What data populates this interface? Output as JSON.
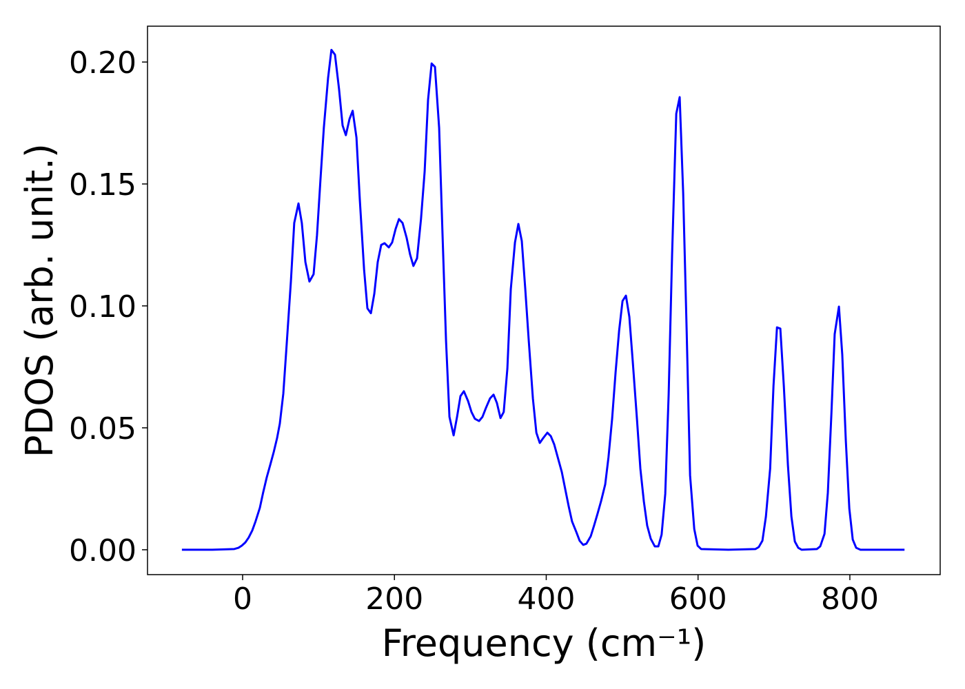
{
  "chart_data": {
    "type": "line",
    "x_label": "Frequency (cm⁻¹)",
    "y_label": "PDOS (arb. unit.)",
    "color": "#0000ff",
    "xlim": [
      -125.3,
      919
    ],
    "ylim": [
      -0.0102,
      0.2147
    ],
    "xticks": [
      0,
      200,
      400,
      600,
      800
    ],
    "yticks": [
      {
        "value": 0,
        "label": "0.00"
      },
      {
        "value": 0.05,
        "label": "0.05"
      },
      {
        "value": 0.1,
        "label": "0.10"
      },
      {
        "value": 0.15,
        "label": "0.15"
      },
      {
        "value": 0.2,
        "label": "0.20"
      }
    ],
    "grid": false,
    "x": [
      -80,
      -40,
      -11,
      -5.5,
      -1,
      3.6,
      8,
      12.7,
      17,
      22.7,
      27,
      31.8,
      36.3,
      41,
      45.4,
      49,
      53.6,
      58,
      63.6,
      68,
      73.6,
      78,
      82.7,
      88,
      93.5,
      98,
      102.6,
      107,
      112.6,
      117,
      121.7,
      127,
      131.7,
      136,
      140.8,
      145,
      150,
      154.4,
      160,
      164.4,
      169,
      173.5,
      178,
      182.6,
      187,
      192.6,
      197,
      201.6,
      206,
      210.7,
      216,
      220.7,
      225,
      229.8,
      235,
      239.8,
      244.3,
      249,
      253.4,
      258.9,
      263.4,
      268,
      272.5,
      278,
      282.5,
      287,
      291.5,
      297,
      301.5,
      306,
      311.5,
      316,
      320.6,
      326,
      330.6,
      335,
      339.7,
      344,
      348.8,
      353.3,
      358.8,
      363.3,
      367.8,
      372.4,
      377,
      382.4,
      387,
      391.5,
      396,
      401.5,
      406,
      410.5,
      415,
      420.5,
      425,
      429.6,
      434,
      439.6,
      444,
      448.7,
      453,
      458.7,
      463,
      467.8,
      472.3,
      477.7,
      482,
      486.8,
      491.4,
      496,
      500.5,
      505,
      509.5,
      514,
      519.5,
      524,
      528.6,
      533,
      537.7,
      543,
      547.7,
      552,
      556.8,
      561.3,
      565.8,
      571.3,
      575.8,
      580.4,
      585,
      589.5,
      595,
      599.4,
      604,
      640,
      675.7,
      680,
      684.8,
      689.4,
      695,
      699.4,
      704,
      708.4,
      713,
      718.4,
      723,
      727.5,
      732,
      736.6,
      756.6,
      761,
      766.6,
      771,
      775.7,
      780,
      785.6,
      790,
      794.7,
      799.3,
      803.8,
      808.3,
      814,
      872
    ],
    "values": [
      0,
      0,
      0.0003,
      0.0008,
      0.0017,
      0.003,
      0.005,
      0.0079,
      0.0116,
      0.0172,
      0.0234,
      0.0297,
      0.0347,
      0.0401,
      0.0458,
      0.0517,
      0.064,
      0.084,
      0.11,
      0.134,
      0.142,
      0.134,
      0.118,
      0.11,
      0.113,
      0.129,
      0.152,
      0.173,
      0.1935,
      0.205,
      0.203,
      0.189,
      0.174,
      0.17,
      0.1766,
      0.18,
      0.169,
      0.1435,
      0.115,
      0.099,
      0.097,
      0.105,
      0.118,
      0.125,
      0.1257,
      0.124,
      0.126,
      0.1316,
      0.1356,
      0.134,
      0.128,
      0.121,
      0.1164,
      0.1195,
      0.1356,
      0.155,
      0.1845,
      0.1994,
      0.198,
      0.173,
      0.129,
      0.0856,
      0.0545,
      0.0469,
      0.0545,
      0.063,
      0.065,
      0.061,
      0.0565,
      0.0537,
      0.0528,
      0.0545,
      0.0582,
      0.0621,
      0.0636,
      0.0602,
      0.054,
      0.0565,
      0.0743,
      0.1068,
      0.126,
      0.1336,
      0.1266,
      0.1068,
      0.0856,
      0.0621,
      0.048,
      0.0438,
      0.0458,
      0.048,
      0.0466,
      0.0432,
      0.0381,
      0.0319,
      0.0249,
      0.0178,
      0.0116,
      0.0073,
      0.0037,
      0.002,
      0.0025,
      0.0056,
      0.0099,
      0.015,
      0.02,
      0.0268,
      0.0379,
      0.0537,
      0.0729,
      0.0898,
      0.102,
      0.1042,
      0.0955,
      0.0771,
      0.0537,
      0.0333,
      0.0198,
      0.0099,
      0.0045,
      0.0014,
      0.0014,
      0.0062,
      0.0229,
      0.0638,
      0.1209,
      0.1788,
      0.1856,
      0.1463,
      0.0898,
      0.0305,
      0.0085,
      0.0017,
      0.0003,
      0,
      0.0003,
      0.0011,
      0.0037,
      0.0136,
      0.0333,
      0.0672,
      0.0912,
      0.0907,
      0.0672,
      0.0347,
      0.0136,
      0.0034,
      0.0008,
      0,
      0.0003,
      0.0014,
      0.0065,
      0.0234,
      0.0559,
      0.0884,
      0.0997,
      0.08,
      0.0446,
      0.0169,
      0.0042,
      0.0008,
      0,
      0
    ]
  }
}
